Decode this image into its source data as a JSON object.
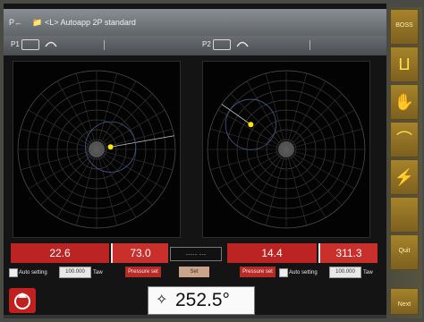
{
  "header": {
    "title": "<L> Autoapp 2P standard",
    "left_mark": "P←",
    "icon": "folder-icon"
  },
  "subbar": {
    "p1_label": "P1",
    "p2_label": "P2"
  },
  "readouts": {
    "p1_primary": "22.6",
    "p1_secondary": "73.0",
    "middle_box": "........ .....",
    "p2_primary": "14.4",
    "p2_secondary": "311.3"
  },
  "settings": {
    "left_label": "Auto setting",
    "left_value": "100.000",
    "left_unit": "Taw",
    "left_red": "Pressure set",
    "left_tan": "Set",
    "right_red": "Pressure set",
    "right_label": "Auto setting",
    "right_value": "100.000",
    "right_unit": "Taw"
  },
  "angle": {
    "value": "252.5°",
    "icon": "crosshair-arrows-icon"
  },
  "sidebar": {
    "buttons": [
      {
        "label": "BOSS",
        "icon": "boss-icon"
      },
      {
        "label": "",
        "icon": "bracket-icon"
      },
      {
        "label": "",
        "icon": "hand-icon"
      },
      {
        "label": "",
        "icon": "arc-shape-icon"
      },
      {
        "label": "",
        "icon": "lightning-icon"
      },
      {
        "label": "",
        "icon": "blank-icon"
      },
      {
        "label": "Quit",
        "icon": "quit-icon"
      },
      {
        "label": "",
        "icon": "blank-icon"
      },
      {
        "label": "Next",
        "icon": "next-icon"
      }
    ]
  },
  "plots": {
    "p1_point": {
      "angle_deg": 10,
      "radius": 0.18
    },
    "p2_point": {
      "angle_deg": 145,
      "radius": 0.55
    }
  },
  "colors": {
    "accent_red": "#bb2422",
    "plot_point": "#ffe600",
    "sidebar_gold": "#a6832a"
  }
}
